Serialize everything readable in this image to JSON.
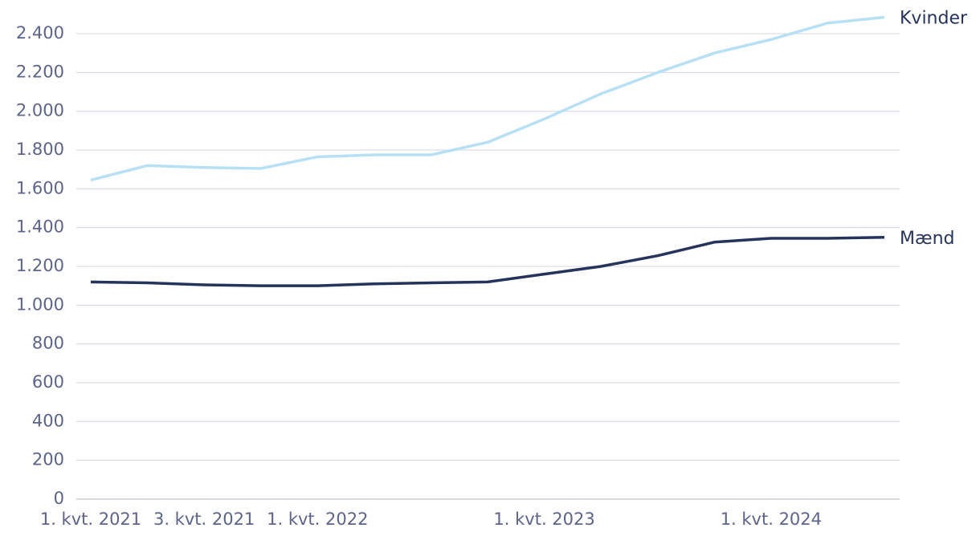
{
  "chart_data": {
    "type": "line",
    "categories": [
      "1. kvt. 2021",
      null,
      "3. kvt. 2021",
      null,
      "1. kvt. 2022",
      null,
      null,
      null,
      "1. kvt. 2023",
      null,
      null,
      null,
      "1. kvt. 2024",
      null,
      null
    ],
    "series": [
      {
        "name": "Kvinder",
        "color": "#b7e0f5",
        "values": [
          1645,
          1720,
          1710,
          1705,
          1765,
          1775,
          1775,
          1840,
          1960,
          2090,
          2200,
          2300,
          2370,
          2455,
          2485
        ]
      },
      {
        "name": "Mænd",
        "color": "#26335a",
        "values": [
          1120,
          1115,
          1105,
          1100,
          1100,
          1110,
          1115,
          1120,
          1160,
          1200,
          1255,
          1325,
          1345,
          1345,
          1350
        ]
      }
    ],
    "ylim": [
      0,
      2400
    ],
    "yticks": [
      0,
      200,
      400,
      600,
      800,
      {
        "value": 1000,
        "label": "1.000"
      },
      {
        "value": 1200,
        "label": "1.200"
      },
      {
        "value": 1400,
        "label": "1.400"
      },
      {
        "value": 1600,
        "label": "1.600"
      },
      {
        "value": 1800,
        "label": "1.800"
      },
      {
        "value": 2000,
        "label": "2.000"
      },
      {
        "value": 2200,
        "label": "2.200"
      },
      {
        "value": 2400,
        "label": "2.400"
      }
    ],
    "grid": true
  }
}
